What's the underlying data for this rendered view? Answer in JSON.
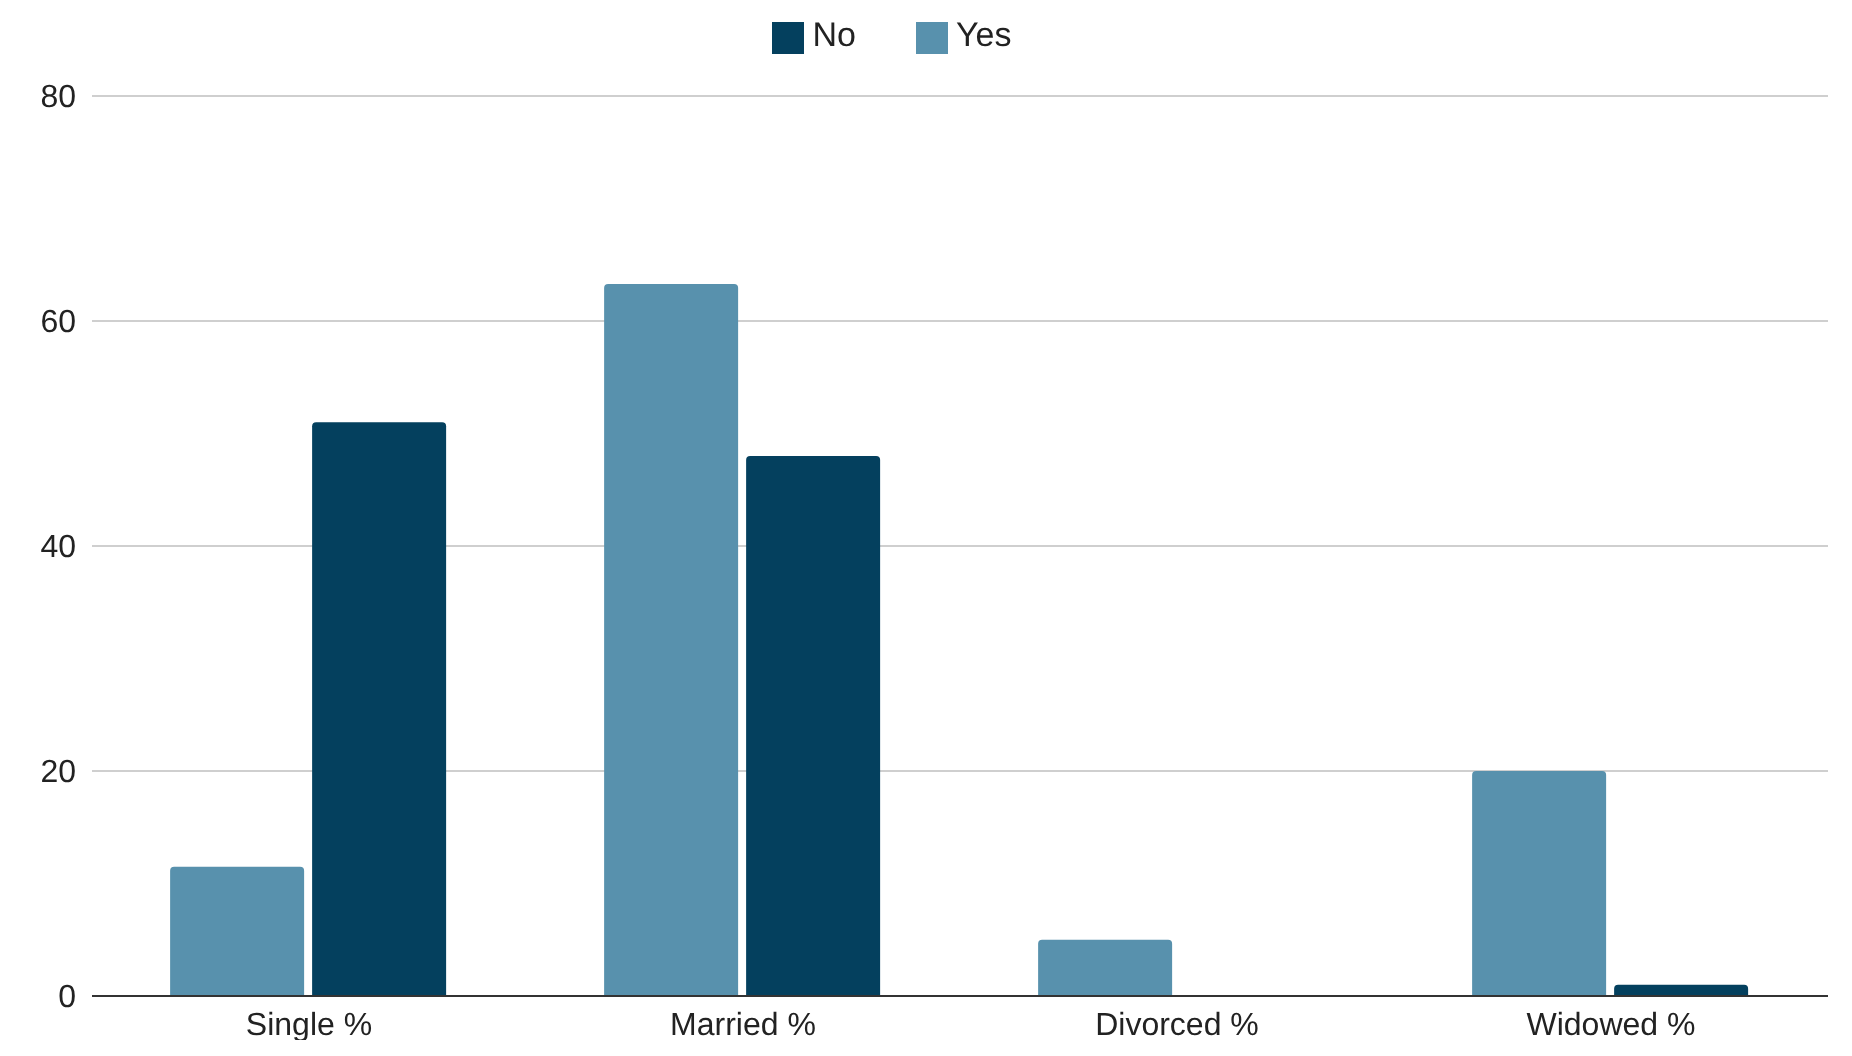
{
  "chart_data": {
    "type": "bar",
    "categories": [
      "Single %",
      "Married %",
      "Divorced %",
      "Widowed %"
    ],
    "series": [
      {
        "name": "Yes",
        "color": "#5891ad",
        "values": [
          11.5,
          63.3,
          5,
          20
        ]
      },
      {
        "name": "No",
        "color": "#04405e",
        "values": [
          51,
          48,
          0,
          1
        ]
      }
    ],
    "ylim": [
      0,
      80
    ],
    "yticks": [
      0,
      20,
      40,
      60,
      80
    ],
    "grid": "y",
    "legend": "top"
  }
}
